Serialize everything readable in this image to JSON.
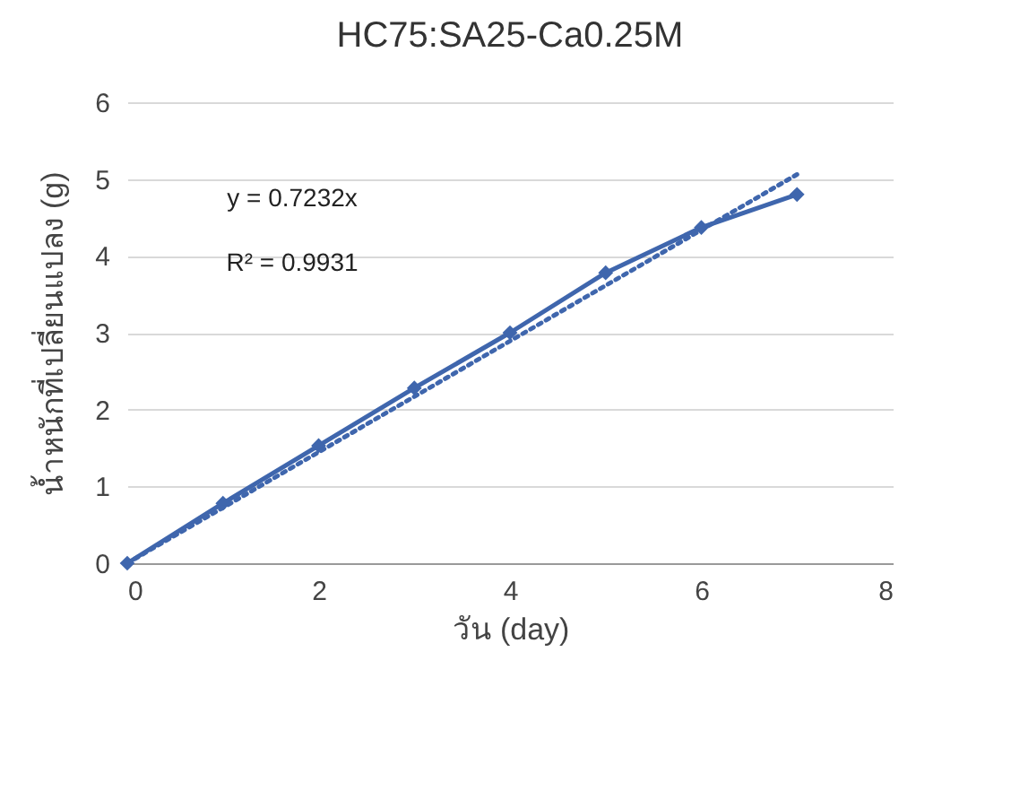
{
  "chart_data": {
    "type": "line",
    "title": "HC75:SA25-Ca0.25M",
    "xlabel": "วัน (day)",
    "ylabel": "น้ำหนักที่เปลี่ยนแปลง (g)",
    "x": [
      0,
      1,
      2,
      3,
      4,
      5,
      6,
      7
    ],
    "series": [
      {
        "color": "#3f66ad",
        "values": [
          0,
          0.78,
          1.53,
          2.28,
          3.0,
          3.78,
          4.37,
          4.8
        ],
        "marker": "diamond",
        "line_style": "solid"
      },
      {
        "type": "line",
        "color": "#3f66ad",
        "x": [
          0,
          7
        ],
        "values": [
          0,
          5.06
        ],
        "marker": "none",
        "line_style": "dotted"
      }
    ],
    "xlim": [
      0,
      8
    ],
    "xticks": [
      0,
      2,
      4,
      6,
      8
    ],
    "ylim": [
      0,
      6
    ],
    "yticks": [
      0,
      1,
      2,
      3,
      4,
      5,
      6
    ],
    "grid": "y",
    "annotations": [
      "y = 0.7232x",
      "R² = 0.9931"
    ]
  }
}
